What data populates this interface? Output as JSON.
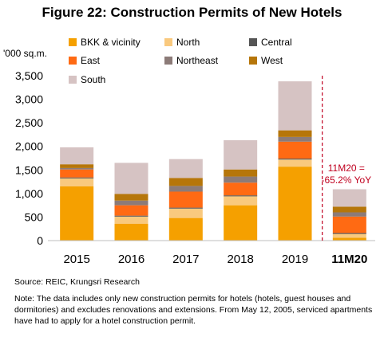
{
  "title": "Figure 22: Construction Permits of New Hotels",
  "chart_data": {
    "type": "bar",
    "stacked": true,
    "ylabel": "'000 sq.m.",
    "ylim": [
      0,
      3500
    ],
    "yticks": [
      "0",
      "500",
      "1,000",
      "1,500",
      "2,000",
      "2,500",
      "3,000",
      "3,500"
    ],
    "categories": [
      "2015",
      "2016",
      "2017",
      "2018",
      "2019",
      "11M20"
    ],
    "series": [
      {
        "name": "BKK & vicinity",
        "color": "#F5A000",
        "values": [
          1150,
          360,
          480,
          750,
          1570,
          60
        ]
      },
      {
        "name": "North",
        "color": "#F9C97E",
        "values": [
          170,
          150,
          200,
          190,
          150,
          80
        ]
      },
      {
        "name": "Central",
        "color": "#555555",
        "values": [
          20,
          20,
          20,
          20,
          20,
          20
        ]
      },
      {
        "name": "East",
        "color": "#FF6A13",
        "values": [
          170,
          220,
          340,
          270,
          360,
          350
        ]
      },
      {
        "name": "Northeast",
        "color": "#8C7B78",
        "values": [
          30,
          100,
          120,
          130,
          100,
          90
        ]
      },
      {
        "name": "West",
        "color": "#B6760A",
        "values": [
          80,
          140,
          170,
          150,
          140,
          120
        ]
      },
      {
        "name": "South",
        "color": "#D6C3C3",
        "values": [
          360,
          660,
          400,
          620,
          1040,
          370
        ]
      }
    ],
    "legend_position": "top",
    "grid": false,
    "annotation": {
      "lines": [
        "11M20 =",
        "-65.2% YoY"
      ],
      "color": "#C0001F"
    },
    "divider_before": "11M20"
  },
  "source": "Source: REIC, Krungsri Research",
  "note": "Note: The data includes only new construction permits for hotels (hotels, guest houses and dormitories) and excludes renovations and extensions. From May 12, 2005, serviced apartments have had to apply for a hotel construction permit."
}
